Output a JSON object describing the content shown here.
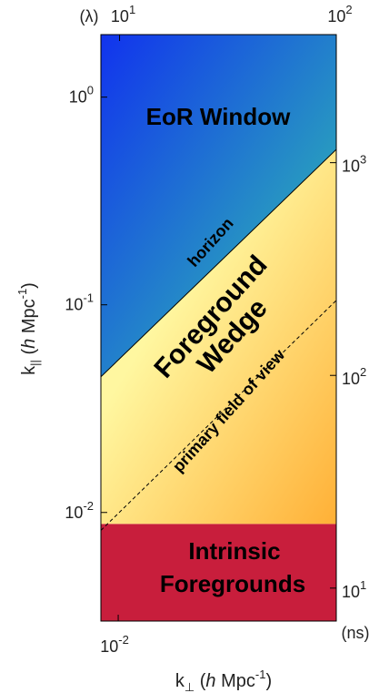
{
  "chart_data": {
    "type": "area",
    "xlabel_main": "k",
    "xlabel_sub": "⊥",
    "xlabel_open": " (",
    "xlabel_h": "h",
    "xlabel_unit": " Mpc",
    "xlabel_exp": "-1",
    "xlabel_close": ")",
    "ylabel_main": "k",
    "ylabel_sub": "||",
    "ylabel_open": " (",
    "ylabel_h": "h",
    "ylabel_unit": " Mpc",
    "ylabel_exp": "-1",
    "ylabel_close": ")",
    "top_axis_unit": "(λ)",
    "right_axis_unit": "(ns)",
    "x_scale": "log",
    "y_scale": "log",
    "xlim": [
      0.0088,
      0.05
    ],
    "ylim": [
      0.003,
      2.0
    ],
    "top_lim": [
      8.2,
      100
    ],
    "right_lim": [
      7,
      4000
    ],
    "bottom_ticks": [
      {
        "value": 0.01,
        "base": "10",
        "exp": "-2"
      }
    ],
    "left_ticks": [
      {
        "value": 1,
        "base": "10",
        "exp": "0"
      },
      {
        "value": 0.1,
        "base": "10",
        "exp": "-1"
      },
      {
        "value": 0.01,
        "base": "10",
        "exp": "-2"
      }
    ],
    "top_ticks": [
      {
        "value": 10,
        "base": "10",
        "exp": "1"
      },
      {
        "value": 100,
        "base": "10",
        "exp": "2"
      }
    ],
    "right_ticks": [
      {
        "value": 1000,
        "base": "10",
        "exp": "3"
      },
      {
        "value": 100,
        "base": "10",
        "exp": "2"
      },
      {
        "value": 10,
        "base": "10",
        "exp": "1"
      }
    ],
    "horizon_line": {
      "label": "horizon",
      "points": [
        [
          0.0088,
          0.045
        ],
        [
          0.05,
          0.56
        ]
      ]
    },
    "fov_line": {
      "label": "primary field of view",
      "points": [
        [
          0.0088,
          0.0082
        ],
        [
          0.05,
          0.105
        ]
      ]
    },
    "foreground_floor": 0.0088,
    "regions": [
      {
        "name": "eor_window",
        "lines": [
          "EoR Window"
        ]
      },
      {
        "name": "foreground_wedge",
        "lines": [
          "Foreground",
          "Wedge"
        ]
      },
      {
        "name": "intrinsic_foregrounds",
        "lines": [
          "Intrinsic",
          "Foregrounds"
        ]
      }
    ],
    "colors": {
      "eor_top": "#1133ee",
      "eor_bottom": "#33ccaa",
      "wedge_top": "#fff7a0",
      "wedge_bottom": "#ffb036",
      "intrinsic": "#c81e3c",
      "line": "#000000"
    },
    "grid": false
  }
}
